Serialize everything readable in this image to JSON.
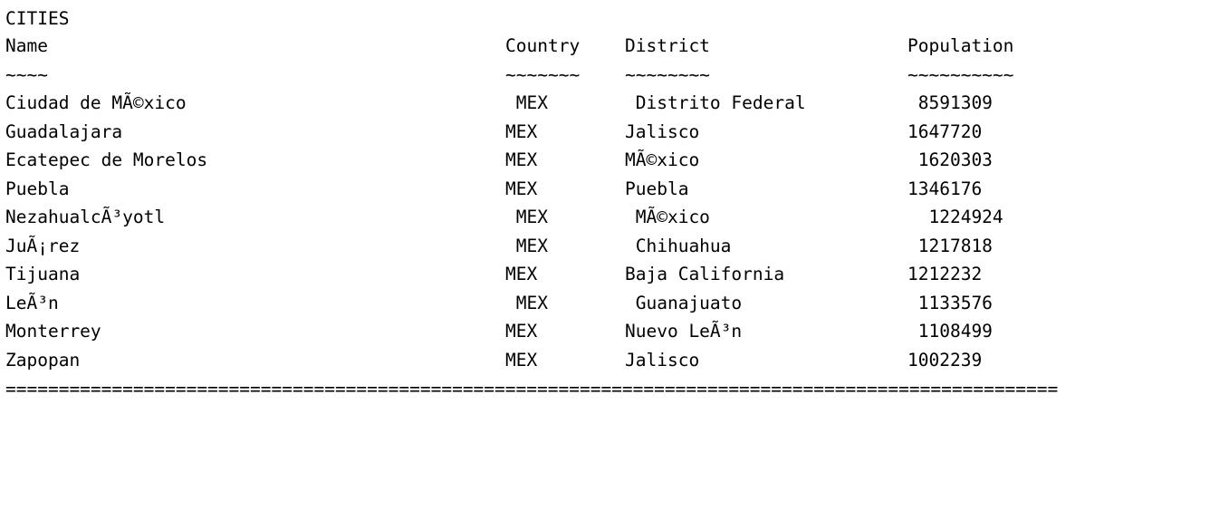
{
  "title": "CITIES",
  "header": {
    "name": "Name",
    "country": "Country",
    "district": "District",
    "population": "Population"
  },
  "underline": {
    "name": "~~~~",
    "country": "~~~~~~~",
    "district": "~~~~~~~~",
    "population": "~~~~~~~~~~"
  },
  "rows": [
    {
      "name": "Ciudad de MÃ©xico",
      "country": " MEX",
      "district": " Distrito Federal",
      "population": " 8591309"
    },
    {
      "name": "Guadalajara",
      "country": "MEX",
      "district": "Jalisco",
      "population": "1647720"
    },
    {
      "name": "Ecatepec de Morelos",
      "country": "MEX",
      "district": "MÃ©xico",
      "population": " 1620303"
    },
    {
      "name": "Puebla",
      "country": "MEX",
      "district": "Puebla",
      "population": "1346176"
    },
    {
      "name": "NezahualcÃ³yotl",
      "country": " MEX",
      "district": " MÃ©xico",
      "population": "  1224924"
    },
    {
      "name": "JuÃ¡rez",
      "country": " MEX",
      "district": " Chihuahua",
      "population": " 1217818"
    },
    {
      "name": "Tijuana",
      "country": "MEX",
      "district": "Baja California",
      "population": "1212232"
    },
    {
      "name": "LeÃ³n",
      "country": " MEX",
      "district": " Guanajuato",
      "population": " 1133576"
    },
    {
      "name": "Monterrey",
      "country": "MEX",
      "district": "Nuevo LeÃ³n",
      "population": " 1108499"
    },
    {
      "name": "Zapopan",
      "country": "MEX",
      "district": "Jalisco",
      "population": "1002239"
    }
  ],
  "footer_rule": "==================================================================================================="
}
